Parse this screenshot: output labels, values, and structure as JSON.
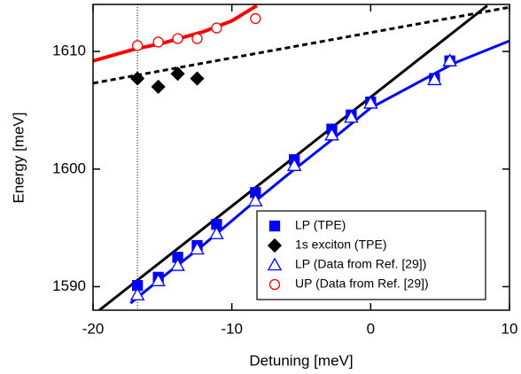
{
  "chart_data": {
    "type": "scatter",
    "xlabel": "Detuning [meV]",
    "ylabel": "Energy [meV]",
    "xlim": [
      -20,
      10
    ],
    "ylim": [
      1588,
      1614
    ],
    "xticks": [
      -20,
      -10,
      0,
      10
    ],
    "yticks": [
      1590,
      1600,
      1610
    ],
    "legend": "lower right",
    "vlines": [
      -16.8
    ],
    "series": [
      {
        "mode": "line",
        "color": "#ff0000",
        "width": 4,
        "x": [
          -20,
          -17,
          -15,
          -12,
          -10,
          -8.2
        ],
        "values": [
          1609.2,
          1610.2,
          1610.7,
          1611.7,
          1612.6,
          1613.9
        ]
      },
      {
        "mode": "line",
        "color": "#000000",
        "width": 3,
        "x": [
          -19.55,
          8.4
        ],
        "values": [
          1588,
          1613.9
        ]
      },
      {
        "mode": "line",
        "color": "#000000",
        "width": 3,
        "dash": true,
        "x": [
          -20,
          10
        ],
        "values": [
          1607.3,
          1613.76
        ]
      },
      {
        "mode": "line",
        "color": "#0000ff",
        "width": 3,
        "x": [
          -17.3,
          -15,
          -12,
          -9,
          -6,
          -3,
          0,
          3,
          6,
          10
        ],
        "values": [
          1588.6,
          1590.8,
          1593.6,
          1596.6,
          1599.5,
          1602.3,
          1605.2,
          1607.1,
          1609.0,
          1610.9
        ]
      },
      {
        "name": "LP (TPE)",
        "mode": "markers",
        "marker": "square",
        "filled": true,
        "color": "#0000ff",
        "x": [
          -16.8,
          -15.3,
          -13.9,
          -12.5,
          -11.1,
          -8.3,
          -5.5,
          -2.8,
          -1.4,
          0.0,
          4.6,
          5.7
        ],
        "values": [
          1590.1,
          1590.8,
          1592.5,
          1593.5,
          1595.3,
          1598.0,
          1600.8,
          1603.4,
          1604.6,
          1605.7,
          1607.7,
          1609.2
        ]
      },
      {
        "name": "1s exciton (TPE)",
        "mode": "markers",
        "marker": "diamond",
        "filled": true,
        "color": "#000000",
        "x": [
          -16.8,
          -15.3,
          -13.9,
          -12.5
        ],
        "values": [
          1607.7,
          1607.0,
          1608.1,
          1607.7
        ]
      },
      {
        "name": "LP (Data from Ref. [29])",
        "mode": "markers",
        "marker": "triangle",
        "filled": false,
        "color": "#0000ff",
        "x": [
          -16.8,
          -15.3,
          -13.9,
          -12.5,
          -11.1,
          -8.3,
          -5.5,
          -2.8,
          -1.4,
          0.0,
          4.6,
          5.7
        ],
        "values": [
          1589.3,
          1590.5,
          1591.8,
          1593.2,
          1594.5,
          1597.3,
          1600.3,
          1602.9,
          1604.4,
          1605.6,
          1607.6,
          1609.2
        ]
      },
      {
        "name": "UP (Data from Ref. [29])",
        "mode": "markers",
        "marker": "circle",
        "filled": false,
        "color": "#ff0000",
        "x": [
          -16.8,
          -15.3,
          -13.9,
          -12.5,
          -11.1,
          -8.3
        ],
        "values": [
          1610.5,
          1610.8,
          1611.1,
          1611.1,
          1612.0,
          1612.8
        ]
      }
    ]
  }
}
